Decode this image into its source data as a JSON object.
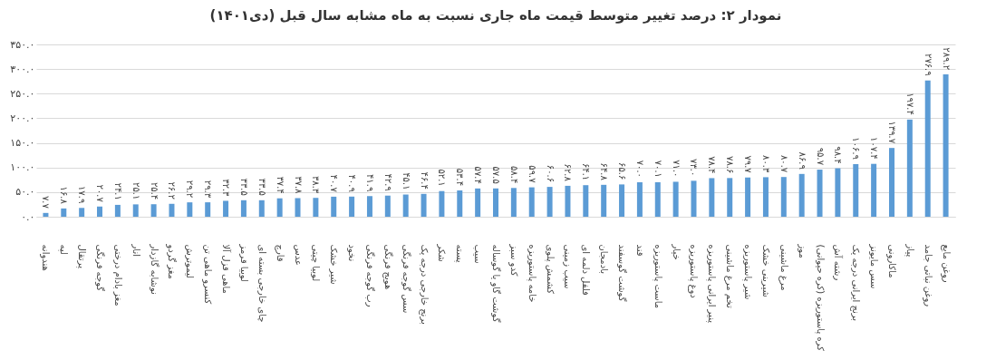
{
  "chart_data": {
    "type": "bar",
    "title": "نمودار ۲: درصد تغییر متوسط قیمت ماه جاری نسبت به ماه مشابه سال قبل (دی۱۴۰۱)",
    "categories": [
      "هندوانه",
      "لپه",
      "پرتقال",
      "گوجه فرنگی",
      "مغز بادام درختی",
      "انار",
      "نوشابه گازدار",
      "مغز گردو",
      "لیموترش",
      "کنسرو ماهی تن",
      "ماهی قزل آلا",
      "لوبیا قرمز",
      "چای خارجی بسته ای",
      "قارچ",
      "عدس",
      "لوبیا چیتی",
      "شیر خشک",
      "نخود",
      "رب گوجه فرنگی",
      "هویج فرنگی",
      "سس گوجه فرنگی",
      "برنج خارجی درجه یک",
      "شکر",
      "پسته",
      "سیب",
      "گوشت گاو یا گوساله",
      "کدو سبز",
      "خامه پاستوریزه",
      "کشمش پلوی",
      "سیب زمینی",
      "فلفل دلمه ای",
      "بادمجان",
      "گوشت گوسفند",
      "قند",
      "ماست پاستوریزه",
      "خیار",
      "دوغ پاستوریزه",
      "پنیر ایرانی پاستوریزه",
      "تخم مرغ ماشینی",
      "شیر پاستوریزه",
      "شیرینی خشک",
      "مرغ ماشینی",
      "موز",
      "کره پاستوریزه (کره حیوانی)",
      "رشته آش",
      "برنج ایرانی درجه یک",
      "سس مایونز",
      "ماکارونی",
      "پیاز",
      "روغن نباتی جامد",
      "روغن مایع"
    ],
    "values": [
      7.7,
      16.8,
      17.9,
      20.7,
      24.1,
      25.1,
      25.4,
      26.2,
      29.2,
      29.3,
      32.3,
      33.5,
      33.5,
      37.4,
      37.8,
      38.3,
      40.7,
      40.9,
      41.9,
      42.9,
      45.1,
      46.4,
      52.1,
      53.4,
      57.4,
      57.5,
      58.4,
      59.7,
      60.6,
      62.8,
      64.1,
      64.8,
      65.6,
      70.0,
      70.1,
      71.0,
      73.0,
      78.4,
      78.6,
      79.7,
      80.3,
      80.7,
      86.9,
      95.7,
      98.4,
      106.9,
      107.4,
      139.7,
      197.4,
      276.9,
      289.2
    ],
    "value_labels": [
      "۷.۷",
      "۱۶.۸",
      "۱۷.۹",
      "۲۰.۷",
      "۲۴.۱",
      "۲۵.۱",
      "۲۵.۴",
      "۲۶.۲",
      "۲۹.۲",
      "۲۹.۳",
      "۳۲.۳",
      "۳۳.۵",
      "۳۳.۵",
      "۳۷.۴",
      "۳۷.۸",
      "۳۸.۳",
      "۴۰.۷",
      "۴۰.۹",
      "۴۱.۹",
      "۴۲.۹",
      "۴۵.۱",
      "۴۶.۴",
      "۵۲.۱",
      "۵۳.۴",
      "۵۷.۴",
      "۵۷.۵",
      "۵۸.۴",
      "۵۹.۷",
      "۶۰.۶",
      "۶۲.۸",
      "۶۴.۱",
      "۶۴.۸",
      "۶۵.۶",
      "۷۰.۰",
      "۷۰.۱",
      "۷۱.۰",
      "۷۳.۰",
      "۷۸.۴",
      "۷۸.۶",
      "۷۹.۷",
      "۸۰.۳",
      "۸۰.۷",
      "۸۶.۹",
      "۹۵.۷",
      "۹۸.۴",
      "۱۰۶.۹",
      "۱۰۷.۴",
      "۱۳۹.۷",
      "۱۹۷.۴",
      "۲۷۶.۹",
      "۲۸۹.۲"
    ],
    "color": "#5b9bd5",
    "ylim": [
      0,
      350
    ],
    "yticks": [
      {
        "value": 0,
        "label": "۰.۰"
      },
      {
        "value": 50,
        "label": "۵۰.۰"
      },
      {
        "value": 100,
        "label": "۱۰۰.۰"
      },
      {
        "value": 150,
        "label": "۱۵۰.۰"
      },
      {
        "value": 200,
        "label": "۲۰۰.۰"
      },
      {
        "value": 250,
        "label": "۲۵۰.۰"
      },
      {
        "value": 300,
        "label": "۳۰۰.۰"
      },
      {
        "value": 350,
        "label": "۳۵۰.۰"
      }
    ],
    "grid": "y"
  }
}
